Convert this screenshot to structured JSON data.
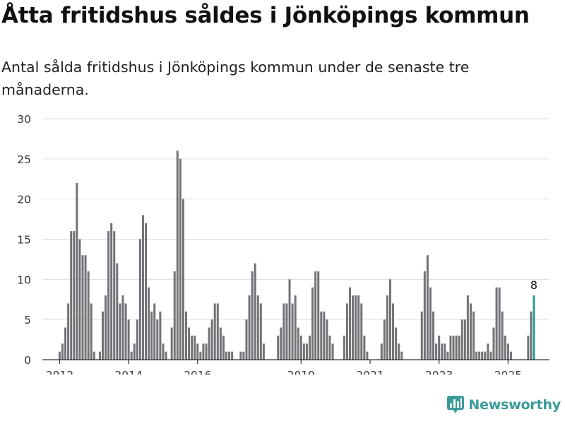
{
  "title": "Åtta fritidshus såldes i Jönköpings kommun",
  "subtitle": "Antal sålda fritidshus i Jönköpings kommun under de senaste tre månaderna.",
  "brand": {
    "name": "Newsworthy",
    "logo": "newsworthy-logo-icon",
    "color": "#3a9c98"
  },
  "colors": {
    "bar": "#737277",
    "highlight": "#2a9a94",
    "grid": "#dddddd",
    "axis": "#333333"
  },
  "chart_data": {
    "type": "bar",
    "ylim": [
      0,
      30
    ],
    "yticks": [
      0,
      5,
      10,
      15,
      20,
      25,
      30
    ],
    "xlim": [
      2011.5,
      2026.2
    ],
    "xticks": [
      {
        "value": 2012.0,
        "label": "2012"
      },
      {
        "value": 2014.0,
        "label": "2014"
      },
      {
        "value": 2016.0,
        "label": "2016"
      },
      {
        "value": 2019.0,
        "label": "2019"
      },
      {
        "value": 2021.0,
        "label": "2021"
      },
      {
        "value": 2023.0,
        "label": "2023"
      },
      {
        "value": 2025.0,
        "label": "2025"
      }
    ],
    "x_start": 2012.0,
    "period_years": 0.08333,
    "values": [
      1,
      2,
      4,
      7,
      16,
      16,
      22,
      15,
      13,
      13,
      11,
      7,
      1,
      0,
      1,
      6,
      8,
      16,
      17,
      16,
      12,
      7,
      8,
      7,
      5,
      1,
      2,
      5,
      15,
      18,
      17,
      9,
      6,
      7,
      5,
      6,
      2,
      1,
      0,
      4,
      11,
      26,
      25,
      20,
      6,
      4,
      3,
      3,
      2,
      1,
      2,
      2,
      4,
      5,
      7,
      7,
      4,
      3,
      1,
      1,
      1,
      0,
      0,
      1,
      1,
      5,
      8,
      11,
      12,
      8,
      7,
      2,
      0,
      0,
      0,
      0,
      3,
      4,
      7,
      7,
      10,
      7,
      8,
      4,
      3,
      2,
      2,
      3,
      9,
      11,
      11,
      6,
      6,
      5,
      3,
      2,
      0,
      0,
      0,
      3,
      7,
      9,
      8,
      8,
      8,
      7,
      3,
      1,
      0,
      0,
      0,
      0,
      2,
      5,
      8,
      10,
      7,
      4,
      2,
      1,
      0,
      0,
      0,
      0,
      0,
      0,
      6,
      11,
      13,
      9,
      6,
      2,
      3,
      2,
      2,
      1,
      3,
      3,
      3,
      3,
      5,
      5,
      8,
      7,
      6,
      1,
      1,
      1,
      1,
      2,
      1,
      4,
      9,
      9,
      6,
      3,
      2,
      1,
      0,
      0,
      0,
      0,
      0,
      3,
      6,
      8
    ],
    "highlight_label": "8"
  }
}
